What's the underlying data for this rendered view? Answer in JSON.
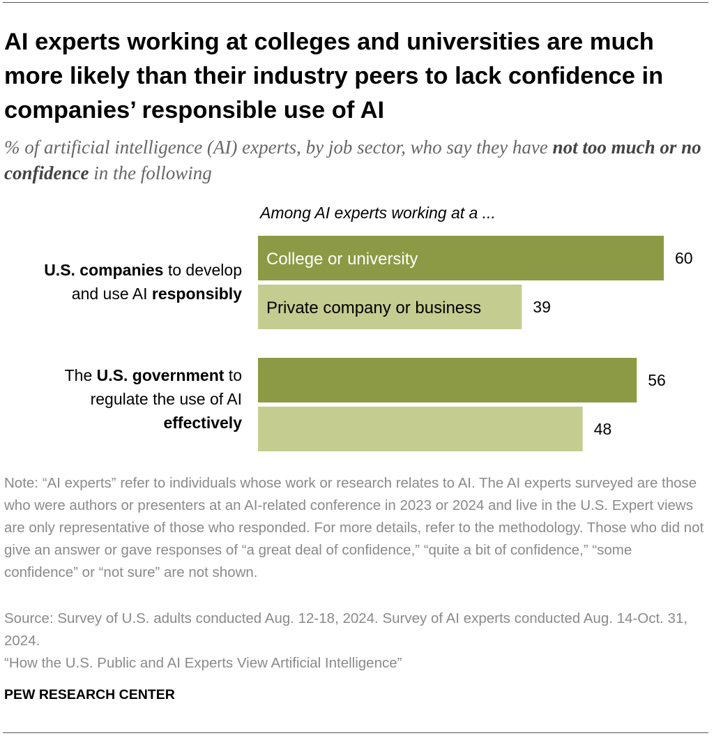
{
  "header": {
    "title": "AI experts working at colleges and universities are much more likely than their industry peers to lack confidence in companies’ responsible use of AI",
    "subtitle_pre": "% of artificial intelligence (AI) experts, by job sector, who say they have ",
    "subtitle_bold": "not too much or no confidence",
    "subtitle_post": " in the following"
  },
  "chart_data": {
    "type": "bar",
    "orientation": "horizontal",
    "header": "Among AI experts working at a ...",
    "categories": [
      {
        "parts": [
          {
            "text": "U.S. companies",
            "bold": true
          },
          {
            "text": " to develop",
            "bold": false
          },
          {
            "text": "and use AI ",
            "bold": false,
            "newline": true
          },
          {
            "text": "responsibly",
            "bold": true
          }
        ]
      },
      {
        "parts": [
          {
            "text": "The ",
            "bold": false
          },
          {
            "text": "U.S. government",
            "bold": true
          },
          {
            "text": " to",
            "bold": false
          },
          {
            "text": "regulate the use of AI",
            "bold": false,
            "newline": true
          },
          {
            "text": "effectively",
            "bold": true,
            "newline": true
          }
        ]
      }
    ],
    "series": [
      {
        "name": "College or university",
        "color": "#8c9a45",
        "label_color": "#ffffff",
        "values": [
          60,
          56
        ]
      },
      {
        "name": "Private company or business",
        "color": "#c5cc8f",
        "label_color": "#000000",
        "values": [
          39,
          48
        ]
      }
    ],
    "xlim": [
      0,
      100
    ],
    "grid": false,
    "legend": "inside-bars"
  },
  "footer": {
    "note": "Note: “AI experts” refer to individuals whose work or research relates to AI. The AI experts surveyed are those who were authors or presenters at an AI-related conference in 2023 or 2024 and live in the U.S. Expert views are only representative of those who responded. For more details, refer to the methodology. Those who did not give an answer or gave responses of “a great deal of confidence,” “quite a bit of confidence,” “some confidence” or “not sure” are not shown.",
    "source": "Source: Survey of U.S. adults conducted Aug. 12-18, 2024. Survey of AI experts conducted Aug. 14-Oct. 31, 2024.",
    "report": "“How the U.S. Public and AI Experts View Artificial Intelligence”",
    "brand": "PEW RESEARCH CENTER"
  }
}
